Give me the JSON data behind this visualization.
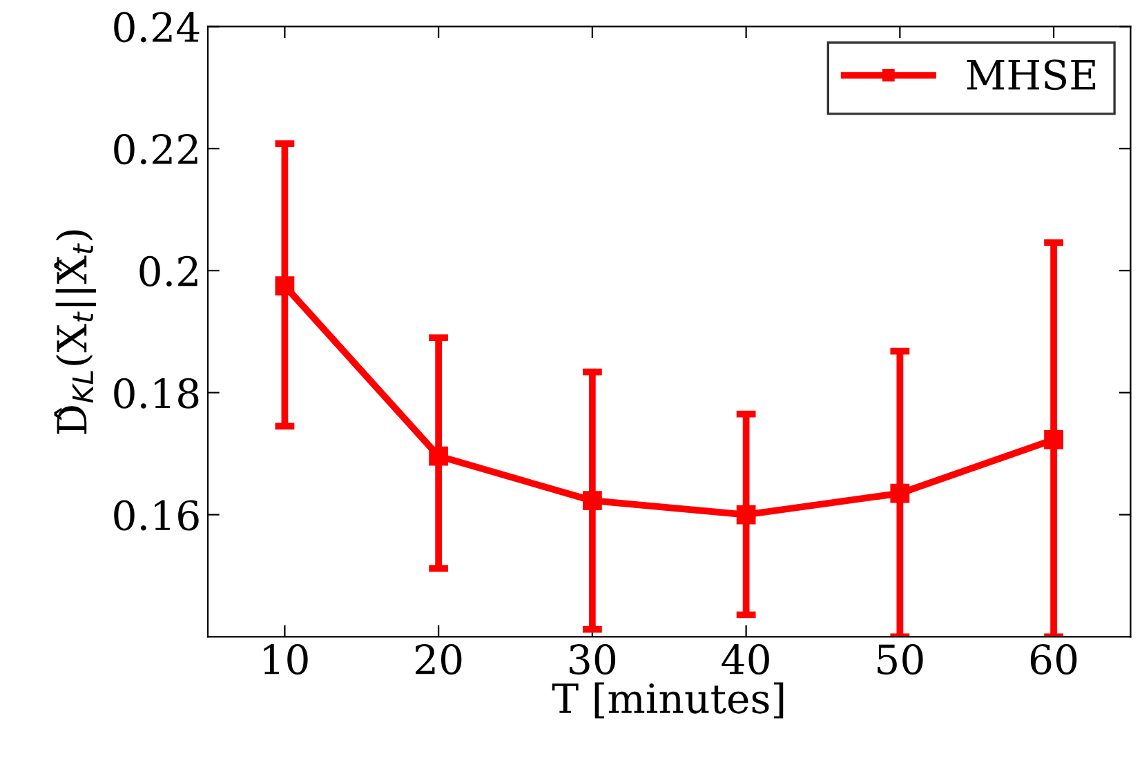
{
  "chart_data": {
    "type": "line",
    "xlabel": "T [minutes]",
    "ylabel": "D̂$_{KL}$(X$_{t}$||X̂$_{t}$)",
    "x": [
      10,
      20,
      30,
      40,
      50,
      60
    ],
    "series": [
      {
        "name": "MHSE",
        "color": "#ff0000",
        "values": [
          0.1975,
          0.1696,
          0.1623,
          0.16,
          0.1635,
          0.1723
        ],
        "errors": [
          [
            0.1745,
            0.2208
          ],
          [
            0.1512,
            0.189
          ],
          [
            0.1412,
            0.1834
          ],
          [
            0.1436,
            0.1765
          ],
          [
            0.14,
            0.1868
          ],
          [
            0.14,
            0.2046
          ]
        ]
      }
    ],
    "xlim": [
      5,
      65
    ],
    "ylim": [
      0.14,
      0.24
    ],
    "xticks": [
      10,
      20,
      30,
      40,
      50,
      60
    ],
    "yticks": [
      0.16,
      0.18,
      0.2,
      0.22,
      0.24
    ],
    "marker": "square",
    "line_style": "solid",
    "legend": "top right",
    "grid": false
  }
}
